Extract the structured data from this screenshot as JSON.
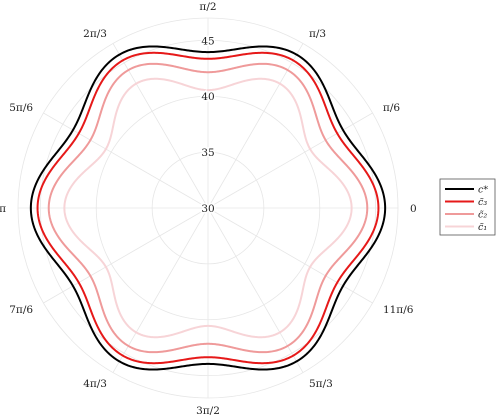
{
  "chart_data": {
    "type": "polar-line",
    "title": "",
    "angular_axis": {
      "tick_labels": [
        "0",
        "π/6",
        "π/3",
        "π/2",
        "2π/3",
        "5π/6",
        "π",
        "7π/6",
        "4π/3",
        "3π/2",
        "5π/3",
        "11π/6"
      ],
      "tick_angles_rad": [
        0,
        0.5236,
        1.0472,
        1.5708,
        2.0944,
        2.618,
        3.1416,
        3.6652,
        4.1888,
        4.7124,
        5.236,
        5.7596
      ]
    },
    "radial_axis": {
      "range": [
        30,
        47
      ],
      "ticks": [
        30,
        35,
        40,
        45
      ],
      "tick_labels": [
        "30",
        "35",
        "40",
        "45"
      ]
    },
    "grid": true,
    "legend_placement": "right",
    "series": [
      {
        "name": "c̃₁",
        "color": "#f7d4d7",
        "mean_r": 41.7,
        "amplitude": 1.15,
        "harmonic": 6,
        "phase": 0.0
      },
      {
        "name": "c̃₂",
        "color": "#ef9a9a",
        "mean_r": 43.2,
        "amplitude": 1.05,
        "harmonic": 6,
        "phase": 0.0
      },
      {
        "name": "c̃₃",
        "color": "#e61919",
        "mean_r": 44.3,
        "amplitude": 0.95,
        "harmonic": 6,
        "phase": 0.0
      },
      {
        "name": "c*",
        "color": "#000000",
        "mean_r": 44.9,
        "amplitude": 0.95,
        "harmonic": 6,
        "phase": 0.0
      }
    ],
    "legend_order": [
      "c*",
      "c̃₃",
      "c̃₂",
      "c̃₁"
    ]
  },
  "legend": {
    "items": [
      {
        "label": "c*",
        "color": "#000000"
      },
      {
        "label": "c̃₃",
        "color": "#e61919"
      },
      {
        "label": "c̃₂",
        "color": "#ef9a9a"
      },
      {
        "label": "c̃₁",
        "color": "#f7d4d7"
      }
    ]
  }
}
